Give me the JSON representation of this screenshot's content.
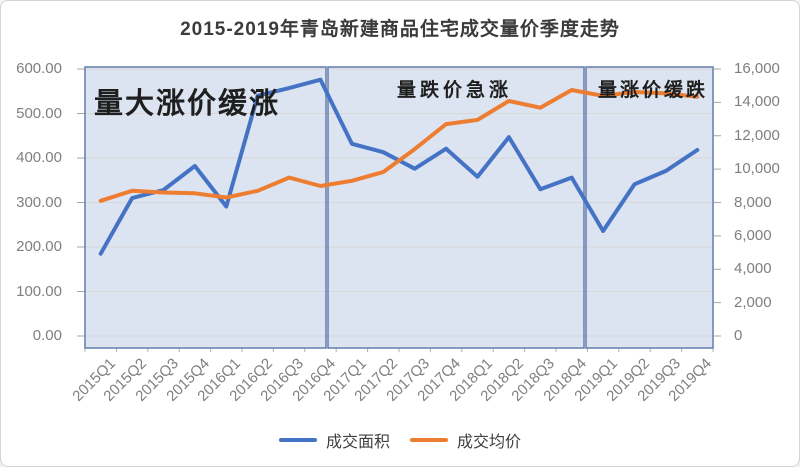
{
  "chart_data": {
    "type": "line",
    "title": "2015-2019年青岛新建商品住宅成交量价季度走势",
    "categories": [
      "2015Q1",
      "2015Q2",
      "2015Q3",
      "2015Q4",
      "2016Q1",
      "2016Q2",
      "2016Q3",
      "2016Q4",
      "2017Q1",
      "2017Q2",
      "2017Q3",
      "2017Q4",
      "2018Q1",
      "2018Q2",
      "2018Q3",
      "2018Q4",
      "2019Q1",
      "2019Q2",
      "2019Q3",
      "2019Q4"
    ],
    "series": [
      {
        "name": "成交面积",
        "axis": "left",
        "color": "#4472c4",
        "values": [
          185,
          310,
          328,
          382,
          291,
          540,
          557,
          576,
          432,
          413,
          376,
          421,
          358,
          447,
          330,
          356,
          236,
          341,
          371,
          418
        ]
      },
      {
        "name": "成交均价",
        "axis": "right",
        "color": "#ed7d31",
        "values": [
          8100,
          8700,
          8600,
          8550,
          8300,
          8700,
          9490,
          8990,
          9300,
          9830,
          11200,
          12700,
          12950,
          14080,
          13680,
          14740,
          14390,
          14620,
          14540,
          14340
        ]
      }
    ],
    "left_axis": {
      "min": 0,
      "max": 600,
      "ticks": [
        "600.00",
        "500.00",
        "400.00",
        "300.00",
        "200.00",
        "100.00",
        "0.00"
      ]
    },
    "right_axis": {
      "min": 0,
      "max": 16000,
      "ticks": [
        "16,000",
        "14,000",
        "12,000",
        "10,000",
        "8,000",
        "6,000",
        "4,000",
        "2,000",
        "0"
      ]
    },
    "annotations": [
      {
        "text": "量大涨价缓涨",
        "region": 1
      },
      {
        "text": "量跌价急涨",
        "region": 2
      },
      {
        "text": "量涨价缓跌",
        "region": 3
      }
    ],
    "legend_position": "bottom",
    "grid": true,
    "region_fill": "#dce4f1",
    "region_border": "#6b83b2",
    "gridline_color": "#d8d8d8"
  }
}
